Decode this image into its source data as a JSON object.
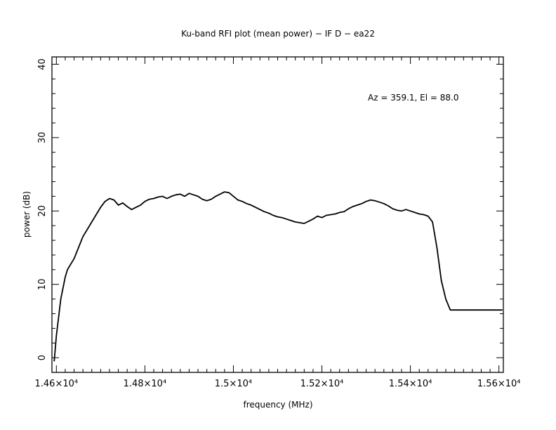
{
  "chart_data": {
    "type": "line",
    "title": "Ku-band RFI plot (mean power) − IF D − ea22",
    "xlabel": "frequency (MHz)",
    "ylabel": "power (dB)",
    "annotation": "Az = 359.1, El = 88.0",
    "xlim": [
      14590,
      15610
    ],
    "ylim": [
      -2,
      41
    ],
    "x_ticks": [
      {
        "value": 14600,
        "label": "1.46×10⁴"
      },
      {
        "value": 14800,
        "label": "1.48×10⁴"
      },
      {
        "value": 15000,
        "label": "1.5×10⁴"
      },
      {
        "value": 15200,
        "label": "1.52×10⁴"
      },
      {
        "value": 15400,
        "label": "1.54×10⁴"
      },
      {
        "value": 15600,
        "label": "1.56×10⁴"
      }
    ],
    "y_ticks": [
      {
        "value": 0,
        "label": "0"
      },
      {
        "value": 10,
        "label": "10"
      },
      {
        "value": 20,
        "label": "20"
      },
      {
        "value": 30,
        "label": "30"
      },
      {
        "value": 40,
        "label": "40"
      }
    ],
    "grid": false,
    "series": [
      {
        "color": "#000000",
        "x": [
          14595,
          14600,
          14610,
          14620,
          14625,
          14630,
          14640,
          14650,
          14660,
          14670,
          14680,
          14690,
          14700,
          14710,
          14720,
          14730,
          14740,
          14750,
          14760,
          14770,
          14780,
          14790,
          14800,
          14810,
          14820,
          14830,
          14840,
          14850,
          14860,
          14870,
          14880,
          14890,
          14900,
          14910,
          14920,
          14930,
          14940,
          14950,
          14960,
          14970,
          14980,
          14990,
          15000,
          15010,
          15020,
          15030,
          15040,
          15050,
          15060,
          15070,
          15080,
          15090,
          15100,
          15110,
          15120,
          15130,
          15140,
          15150,
          15160,
          15170,
          15180,
          15190,
          15200,
          15210,
          15220,
          15230,
          15240,
          15250,
          15260,
          15270,
          15280,
          15290,
          15300,
          15310,
          15320,
          15330,
          15340,
          15350,
          15360,
          15370,
          15380,
          15390,
          15400,
          15410,
          15420,
          15430,
          15440,
          15450,
          15460,
          15470,
          15480,
          15490,
          15500,
          15510,
          15520,
          15530,
          15540,
          15550,
          15560,
          15570,
          15580,
          15590,
          15595,
          15600,
          15605,
          15608
        ],
        "y": [
          -0.5,
          3,
          8,
          11,
          12,
          12.5,
          13.5,
          15,
          16.5,
          17.5,
          18.5,
          19.5,
          20.5,
          21.3,
          21.7,
          21.5,
          20.8,
          21.1,
          20.6,
          20.2,
          20.5,
          20.8,
          21.3,
          21.6,
          21.7,
          21.9,
          22.0,
          21.7,
          22.0,
          22.2,
          22.3,
          22.0,
          22.4,
          22.2,
          22.0,
          21.6,
          21.4,
          21.6,
          22.0,
          22.3,
          22.6,
          22.5,
          22.0,
          21.5,
          21.3,
          21.0,
          20.8,
          20.5,
          20.2,
          19.9,
          19.7,
          19.4,
          19.2,
          19.1,
          18.9,
          18.7,
          18.5,
          18.4,
          18.3,
          18.6,
          18.9,
          19.3,
          19.1,
          19.4,
          19.5,
          19.6,
          19.8,
          19.9,
          20.3,
          20.6,
          20.8,
          21.0,
          21.3,
          21.5,
          21.4,
          21.2,
          21.0,
          20.7,
          20.3,
          20.1,
          20.0,
          20.2,
          20.0,
          19.8,
          19.6,
          19.5,
          19.3,
          18.5,
          15.0,
          10.5,
          8.0,
          6.5,
          6.5,
          6.5,
          6.5,
          6.5,
          6.5,
          6.5,
          6.5,
          6.5,
          6.5,
          6.5,
          6.5,
          6.5,
          6.5,
          6.5
        ]
      }
    ]
  }
}
